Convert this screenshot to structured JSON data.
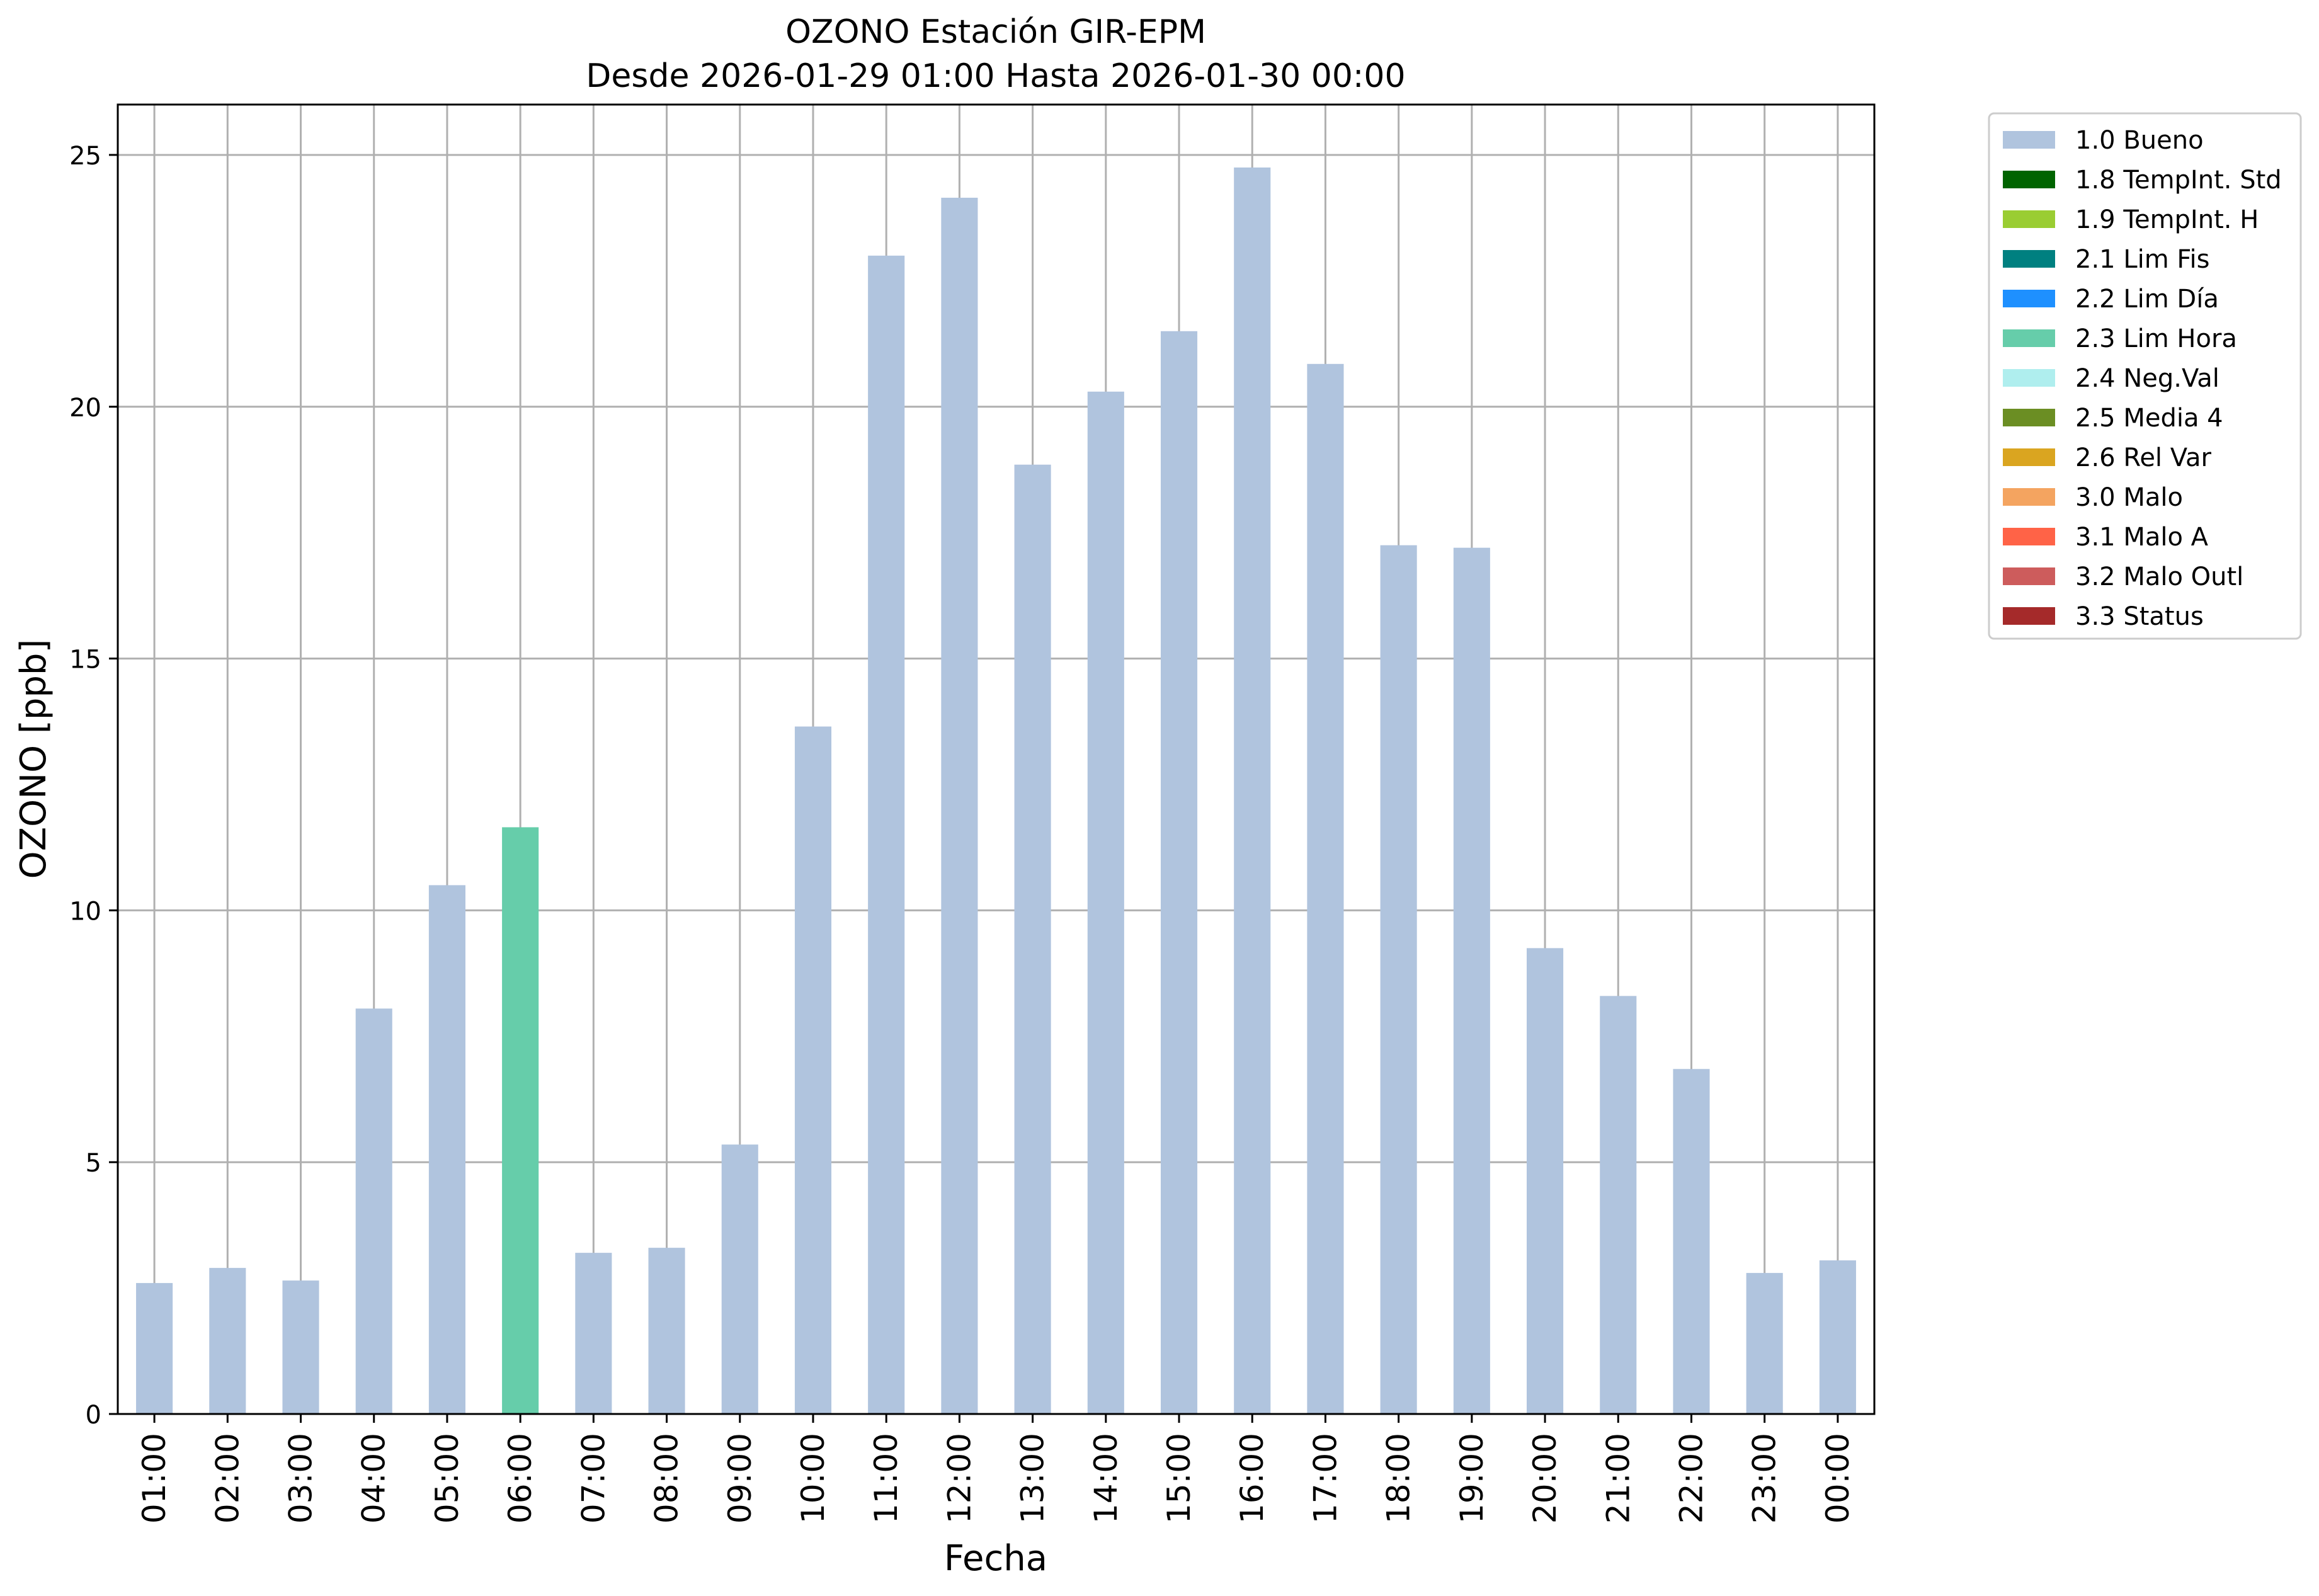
{
  "chart_data": {
    "type": "bar",
    "title_line1": "OZONO Estación GIR-EPM",
    "title_line2": "Desde 2026-01-29 01:00 Hasta 2026-01-30 00:00",
    "xlabel": "Fecha",
    "ylabel": "OZONO [ppb]",
    "ylim": [
      0,
      26
    ],
    "yticks": [
      0,
      5,
      10,
      15,
      20,
      25
    ],
    "grid": true,
    "legend_position": "outside-top-right",
    "categories": [
      "01:00",
      "02:00",
      "03:00",
      "04:00",
      "05:00",
      "06:00",
      "07:00",
      "08:00",
      "09:00",
      "10:00",
      "11:00",
      "12:00",
      "13:00",
      "14:00",
      "15:00",
      "16:00",
      "17:00",
      "18:00",
      "19:00",
      "20:00",
      "21:00",
      "22:00",
      "23:00",
      "00:00"
    ],
    "values": [
      2.6,
      2.9,
      2.65,
      8.05,
      10.5,
      11.65,
      3.2,
      3.3,
      5.35,
      13.65,
      23.0,
      24.15,
      18.85,
      20.3,
      21.5,
      24.75,
      20.85,
      17.25,
      17.2,
      9.25,
      8.3,
      6.85,
      2.8,
      3.05
    ],
    "flags": [
      "1.0 Bueno",
      "1.0 Bueno",
      "1.0 Bueno",
      "1.0 Bueno",
      "1.0 Bueno",
      "2.3 Lim Hora",
      "1.0 Bueno",
      "1.0 Bueno",
      "1.0 Bueno",
      "1.0 Bueno",
      "1.0 Bueno",
      "1.0 Bueno",
      "1.0 Bueno",
      "1.0 Bueno",
      "1.0 Bueno",
      "1.0 Bueno",
      "1.0 Bueno",
      "1.0 Bueno",
      "1.0 Bueno",
      "1.0 Bueno",
      "1.0 Bueno",
      "1.0 Bueno",
      "1.0 Bueno",
      "1.0 Bueno"
    ],
    "legend": [
      {
        "label": "1.0 Bueno",
        "color": "#b0c4de"
      },
      {
        "label": "1.8 TempInt. Std",
        "color": "#006400"
      },
      {
        "label": "1.9 TempInt. H",
        "color": "#9acd32"
      },
      {
        "label": "2.1 Lim Fis",
        "color": "#008080"
      },
      {
        "label": "2.2 Lim Día",
        "color": "#1e90ff"
      },
      {
        "label": "2.3 Lim Hora",
        "color": "#66cdaa"
      },
      {
        "label": "2.4 Neg.Val",
        "color": "#afeeee"
      },
      {
        "label": "2.5 Media 4",
        "color": "#6b8e23"
      },
      {
        "label": "2.6 Rel Var",
        "color": "#daa520"
      },
      {
        "label": "3.0 Malo",
        "color": "#f4a460"
      },
      {
        "label": "3.1 Malo A",
        "color": "#ff6347"
      },
      {
        "label": "3.2 Malo Outl",
        "color": "#cd5c5c"
      },
      {
        "label": "3.3 Status",
        "color": "#a52a2a"
      }
    ]
  }
}
